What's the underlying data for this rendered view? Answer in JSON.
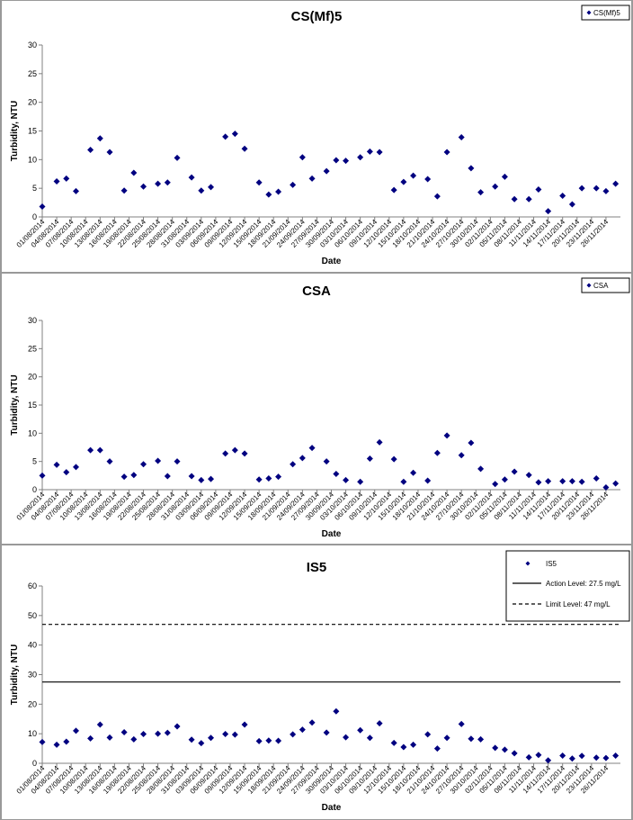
{
  "chart_data": [
    {
      "type": "scatter",
      "title": "CS(Mf)5",
      "x_label": "Date",
      "y_label": "Turbidity, NTU",
      "x": [
        "01/08/2014",
        "04/08/2014",
        "06/08/2014",
        "08/08/2014",
        "11/08/2014",
        "13/08/2014",
        "15/08/2014",
        "18/08/2014",
        "20/08/2014",
        "22/08/2014",
        "25/08/2014",
        "27/08/2014",
        "29/08/2014",
        "01/09/2014",
        "03/09/2014",
        "05/09/2014",
        "08/09/2014",
        "10/09/2014",
        "12/09/2014",
        "15/09/2014",
        "17/09/2014",
        "19/09/2014",
        "22/09/2014",
        "24/09/2014",
        "26/09/2014",
        "29/09/2014",
        "01/10/2014",
        "03/10/2014",
        "06/10/2014",
        "08/10/2014",
        "10/10/2014",
        "13/10/2014",
        "15/10/2014",
        "17/10/2014",
        "20/10/2014",
        "22/10/2014",
        "24/10/2014",
        "27/10/2014",
        "29/10/2014",
        "31/10/2014",
        "03/11/2014",
        "05/11/2014",
        "07/11/2014",
        "10/11/2014",
        "12/11/2014",
        "14/11/2014",
        "17/11/2014",
        "19/11/2014",
        "21/11/2014",
        "24/11/2014",
        "26/11/2014",
        "28/11/2014"
      ],
      "series": [
        {
          "name": "CS(Mf)5",
          "color": "#000080",
          "values": [
            1.8,
            6.2,
            6.7,
            4.5,
            11.7,
            13.7,
            11.3,
            4.6,
            7.7,
            5.3,
            5.8,
            6.0,
            10.3,
            6.9,
            4.6,
            5.2,
            14.0,
            14.5,
            11.9,
            6.0,
            3.9,
            4.4,
            5.6,
            10.4,
            6.7,
            8.0,
            9.9,
            9.8,
            10.4,
            11.4,
            11.3,
            4.7,
            6.1,
            7.2,
            6.6,
            3.6,
            11.3,
            13.9,
            8.5,
            4.3,
            5.3,
            7.0,
            3.1,
            3.1,
            4.8,
            1.0,
            3.7,
            2.2,
            5.0,
            5.0,
            4.5,
            5.8
          ]
        }
      ],
      "xlim": [
        "01/08/2014",
        "29/11/2014"
      ],
      "xticks": [
        "01/08/2014",
        "04/08/2014",
        "07/08/2014",
        "10/08/2014",
        "13/08/2014",
        "16/08/2014",
        "19/08/2014",
        "22/08/2014",
        "25/08/2014",
        "28/08/2014",
        "31/08/2014",
        "03/09/2014",
        "06/09/2014",
        "09/09/2014",
        "12/09/2014",
        "15/09/2014",
        "18/09/2014",
        "21/09/2014",
        "24/09/2014",
        "27/09/2014",
        "30/09/2014",
        "03/10/2014",
        "06/10/2014",
        "09/10/2014",
        "12/10/2014",
        "15/10/2014",
        "18/10/2014",
        "21/10/2014",
        "24/10/2014",
        "27/10/2014",
        "30/10/2014",
        "02/11/2014",
        "05/11/2014",
        "08/11/2014",
        "11/11/2014",
        "14/11/2014",
        "17/11/2014",
        "20/11/2014",
        "23/11/2014",
        "26/11/2014"
      ],
      "ylim": [
        0,
        30
      ],
      "yticks": [
        0,
        5,
        10,
        15,
        20,
        25,
        30
      ],
      "grid": false,
      "legend": "top-right"
    },
    {
      "type": "scatter",
      "title": "CSA",
      "x_label": "Date",
      "y_label": "Turbidity, NTU",
      "x": [
        "01/08/2014",
        "04/08/2014",
        "06/08/2014",
        "08/08/2014",
        "11/08/2014",
        "13/08/2014",
        "15/08/2014",
        "18/08/2014",
        "20/08/2014",
        "22/08/2014",
        "25/08/2014",
        "27/08/2014",
        "29/08/2014",
        "01/09/2014",
        "03/09/2014",
        "05/09/2014",
        "08/09/2014",
        "10/09/2014",
        "12/09/2014",
        "15/09/2014",
        "17/09/2014",
        "19/09/2014",
        "22/09/2014",
        "24/09/2014",
        "26/09/2014",
        "29/09/2014",
        "01/10/2014",
        "03/10/2014",
        "06/10/2014",
        "08/10/2014",
        "10/10/2014",
        "13/10/2014",
        "15/10/2014",
        "17/10/2014",
        "20/10/2014",
        "22/10/2014",
        "24/10/2014",
        "27/10/2014",
        "29/10/2014",
        "31/10/2014",
        "03/11/2014",
        "05/11/2014",
        "07/11/2014",
        "10/11/2014",
        "12/11/2014",
        "14/11/2014",
        "17/11/2014",
        "19/11/2014",
        "21/11/2014",
        "24/11/2014",
        "26/11/2014",
        "28/11/2014"
      ],
      "series": [
        {
          "name": "CSA",
          "color": "#000080",
          "values": [
            2.5,
            4.4,
            3.1,
            4.0,
            7.0,
            7.0,
            5.0,
            2.3,
            2.6,
            4.5,
            5.1,
            2.4,
            5.0,
            2.4,
            1.7,
            1.9,
            6.4,
            7.0,
            6.4,
            1.8,
            2.0,
            2.3,
            4.5,
            5.6,
            7.4,
            5.0,
            2.8,
            1.7,
            1.4,
            5.5,
            8.4,
            5.4,
            1.4,
            3.0,
            1.6,
            6.5,
            9.6,
            6.1,
            8.3,
            3.7,
            1.0,
            1.8,
            3.2,
            2.6,
            1.3,
            1.5,
            1.5,
            1.5,
            1.4,
            2.0,
            0.4,
            1.1
          ]
        }
      ],
      "xlim": [
        "01/08/2014",
        "29/11/2014"
      ],
      "xticks": [
        "01/08/2014",
        "04/08/2014",
        "07/08/2014",
        "10/08/2014",
        "13/08/2014",
        "16/08/2014",
        "19/08/2014",
        "22/08/2014",
        "25/08/2014",
        "28/08/2014",
        "31/08/2014",
        "03/09/2014",
        "06/09/2014",
        "09/09/2014",
        "12/09/2014",
        "15/09/2014",
        "18/09/2014",
        "21/09/2014",
        "24/09/2014",
        "27/09/2014",
        "30/09/2014",
        "03/10/2014",
        "06/10/2014",
        "09/10/2014",
        "12/10/2014",
        "15/10/2014",
        "18/10/2014",
        "21/10/2014",
        "24/10/2014",
        "27/10/2014",
        "30/10/2014",
        "02/11/2014",
        "05/11/2014",
        "08/11/2014",
        "11/11/2014",
        "14/11/2014",
        "17/11/2014",
        "20/11/2014",
        "23/11/2014",
        "26/11/2014"
      ],
      "ylim": [
        0,
        30
      ],
      "yticks": [
        0,
        5,
        10,
        15,
        20,
        25,
        30
      ],
      "grid": false,
      "legend": "top-right"
    },
    {
      "type": "scatter",
      "title": "IS5",
      "x_label": "Date",
      "y_label": "Turbidity, NTU",
      "x": [
        "01/08/2014",
        "04/08/2014",
        "06/08/2014",
        "08/08/2014",
        "11/08/2014",
        "13/08/2014",
        "15/08/2014",
        "18/08/2014",
        "20/08/2014",
        "22/08/2014",
        "25/08/2014",
        "27/08/2014",
        "29/08/2014",
        "01/09/2014",
        "03/09/2014",
        "05/09/2014",
        "08/09/2014",
        "10/09/2014",
        "12/09/2014",
        "15/09/2014",
        "17/09/2014",
        "19/09/2014",
        "22/09/2014",
        "24/09/2014",
        "26/09/2014",
        "29/09/2014",
        "01/10/2014",
        "03/10/2014",
        "06/10/2014",
        "08/10/2014",
        "10/10/2014",
        "13/10/2014",
        "15/10/2014",
        "17/10/2014",
        "20/10/2014",
        "22/10/2014",
        "24/10/2014",
        "27/10/2014",
        "29/10/2014",
        "31/10/2014",
        "03/11/2014",
        "05/11/2014",
        "07/11/2014",
        "10/11/2014",
        "12/11/2014",
        "14/11/2014",
        "17/11/2014",
        "19/11/2014",
        "21/11/2014",
        "24/11/2014",
        "26/11/2014",
        "28/11/2014"
      ],
      "series": [
        {
          "name": "IS5",
          "color": "#000080",
          "values": [
            7.2,
            6.3,
            7.3,
            11.0,
            8.4,
            13.1,
            8.7,
            10.5,
            8.1,
            9.9,
            10.0,
            10.3,
            12.5,
            8.0,
            6.8,
            8.6,
            9.9,
            9.7,
            13.1,
            7.5,
            7.7,
            7.6,
            9.8,
            11.4,
            13.8,
            10.4,
            17.6,
            8.8,
            11.2,
            8.6,
            13.5,
            6.9,
            5.5,
            6.3,
            9.8,
            5.0,
            8.6,
            13.3,
            8.3,
            8.1,
            5.2,
            4.6,
            3.4,
            2.0,
            2.8,
            1.0,
            2.6,
            1.6,
            2.5,
            1.9,
            1.8,
            2.6
          ]
        }
      ],
      "hlines": [
        {
          "name": "Action Level: 27.5 mg/L",
          "value": 27.5,
          "style": "solid",
          "color": "#000000"
        },
        {
          "name": "Limit Level: 47 mg/L",
          "value": 47,
          "style": "dashed",
          "color": "#000000"
        }
      ],
      "xlim": [
        "01/08/2014",
        "29/11/2014"
      ],
      "xticks": [
        "01/08/2014",
        "04/08/2014",
        "07/08/2014",
        "10/08/2014",
        "13/08/2014",
        "16/08/2014",
        "19/08/2014",
        "22/08/2014",
        "25/08/2014",
        "28/08/2014",
        "31/08/2014",
        "03/09/2014",
        "06/09/2014",
        "09/09/2014",
        "12/09/2014",
        "15/09/2014",
        "18/09/2014",
        "21/09/2014",
        "24/09/2014",
        "27/09/2014",
        "30/09/2014",
        "03/10/2014",
        "06/10/2014",
        "09/10/2014",
        "12/10/2014",
        "15/10/2014",
        "18/10/2014",
        "21/10/2014",
        "24/10/2014",
        "27/10/2014",
        "30/10/2014",
        "02/11/2014",
        "05/11/2014",
        "08/11/2014",
        "11/11/2014",
        "14/11/2014",
        "17/11/2014",
        "20/11/2014",
        "23/11/2014",
        "26/11/2014"
      ],
      "ylim": [
        0,
        60
      ],
      "yticks": [
        0,
        10,
        20,
        30,
        40,
        50,
        60
      ],
      "grid": false,
      "legend": "top-right"
    }
  ]
}
